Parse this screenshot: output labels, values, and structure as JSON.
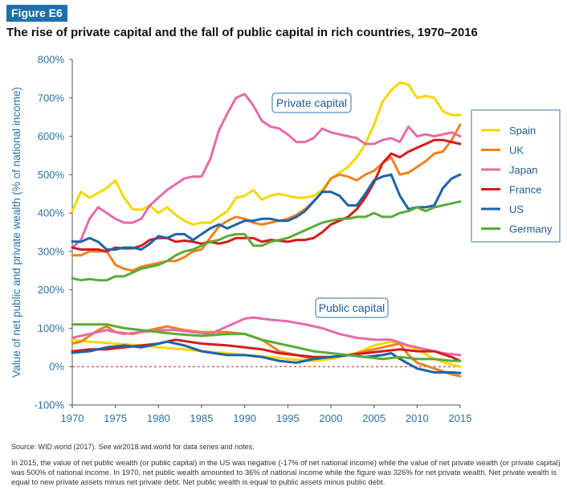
{
  "figure_label": "Figure E6",
  "title": "The rise of private capital and the fall of public capital in rich countries, 1970–2016",
  "source": "Source: WID.world (2017). See wir2018.wid.world for data series and notes.",
  "note": "In 2015, the value of net public wealth (or public capital) in the US was negative (-17% of net national income) while the value of net private wealth (or private capital) was 500% of national income. In 1970, net public wealth amounted to 36% of national income while the figure was 326% for net private wealth. Net private wealth is equal to new private assets minus net private debt. Net public wealth is equal to public assets minus public debt.",
  "colors": {
    "Spain": "#f5d800",
    "UK": "#ee8220",
    "Japan": "#e56ca6",
    "France": "#d41c1c",
    "US": "#1d64a8",
    "Germany": "#5aab38",
    "axis_text": "#2a72a8",
    "zero_line": "#d41c1c"
  },
  "chart_data": {
    "type": "line",
    "ylabel": "Value of net public and private wealth (% of national income)",
    "xlim": [
      1970,
      2015
    ],
    "ylim": [
      -100,
      800
    ],
    "xticks": [
      1970,
      1975,
      1980,
      1985,
      1990,
      1995,
      2000,
      2005,
      2010,
      2015
    ],
    "yticks": [
      -100,
      0,
      100,
      200,
      300,
      400,
      500,
      600,
      700,
      800
    ],
    "ytick_suffix": "%",
    "grid": false,
    "legend_position": "right",
    "annotations": [
      "Private capital",
      "Public capital"
    ],
    "legend": [
      "Spain",
      "UK",
      "Japan",
      "France",
      "US",
      "Germany"
    ],
    "private_capital": [
      {
        "name": "Spain",
        "x": [
          1970,
          1971,
          1972,
          1974,
          1975,
          1976,
          1977,
          1978,
          1979,
          1980,
          1981,
          1982,
          1983,
          1984,
          1985,
          1986,
          1988,
          1989,
          1990,
          1991,
          1992,
          1993,
          1994,
          1995,
          1996,
          1997,
          1998,
          1999,
          2000,
          2001,
          2002,
          2003,
          2004,
          2005,
          2006,
          2007,
          2008,
          2009,
          2010,
          2011,
          2012,
          2013,
          2014,
          2015
        ],
        "y": [
          405,
          455,
          440,
          465,
          485,
          440,
          410,
          408,
          420,
          400,
          415,
          395,
          380,
          370,
          375,
          375,
          405,
          440,
          445,
          460,
          435,
          445,
          450,
          445,
          440,
          440,
          445,
          460,
          490,
          505,
          520,
          545,
          580,
          630,
          690,
          720,
          740,
          735,
          700,
          705,
          700,
          665,
          655,
          655
        ]
      },
      {
        "name": "UK",
        "x": [
          1970,
          1971,
          1972,
          1973,
          1974,
          1975,
          1976,
          1977,
          1978,
          1979,
          1980,
          1981,
          1982,
          1983,
          1984,
          1985,
          1986,
          1987,
          1988,
          1989,
          1990,
          1991,
          1992,
          1993,
          1994,
          1995,
          1996,
          1997,
          1998,
          1999,
          2000,
          2001,
          2002,
          2003,
          2004,
          2005,
          2006,
          2007,
          2008,
          2009,
          2010,
          2011,
          2012,
          2013,
          2014,
          2015
        ],
        "y": [
          290,
          290,
          300,
          300,
          300,
          265,
          255,
          250,
          260,
          265,
          270,
          275,
          275,
          285,
          300,
          305,
          335,
          365,
          380,
          390,
          385,
          375,
          370,
          375,
          380,
          385,
          395,
          410,
          430,
          455,
          490,
          500,
          495,
          485,
          500,
          510,
          530,
          545,
          500,
          505,
          520,
          535,
          555,
          560,
          590,
          630
        ]
      },
      {
        "name": "Japan",
        "x": [
          1970,
          1971,
          1972,
          1973,
          1974,
          1975,
          1976,
          1977,
          1978,
          1979,
          1980,
          1981,
          1982,
          1983,
          1984,
          1985,
          1986,
          1987,
          1988,
          1989,
          1990,
          1991,
          1992,
          1993,
          1994,
          1995,
          1996,
          1997,
          1998,
          1999,
          2000,
          2001,
          2002,
          2003,
          2004,
          2005,
          2006,
          2007,
          2008,
          2009,
          2010,
          2011,
          2012,
          2013,
          2014,
          2015
        ],
        "y": [
          310,
          330,
          385,
          415,
          400,
          385,
          375,
          375,
          385,
          420,
          440,
          460,
          475,
          490,
          495,
          495,
          540,
          615,
          660,
          700,
          710,
          680,
          640,
          625,
          620,
          605,
          585,
          585,
          595,
          620,
          610,
          605,
          600,
          595,
          580,
          580,
          590,
          595,
          585,
          625,
          600,
          605,
          600,
          605,
          610,
          600
        ]
      },
      {
        "name": "France",
        "x": [
          1970,
          1971,
          1972,
          1973,
          1974,
          1975,
          1976,
          1977,
          1978,
          1979,
          1980,
          1981,
          1982,
          1983,
          1984,
          1985,
          1986,
          1987,
          1988,
          1989,
          1990,
          1991,
          1992,
          1993,
          1994,
          1995,
          1996,
          1997,
          1998,
          1999,
          2000,
          2001,
          2002,
          2003,
          2004,
          2005,
          2006,
          2007,
          2008,
          2009,
          2010,
          2011,
          2012,
          2013,
          2014,
          2015
        ],
        "y": [
          310,
          305,
          305,
          305,
          300,
          310,
          308,
          308,
          315,
          330,
          335,
          335,
          325,
          328,
          325,
          320,
          325,
          320,
          325,
          335,
          335,
          335,
          325,
          330,
          328,
          325,
          330,
          330,
          335,
          350,
          370,
          380,
          390,
          410,
          440,
          480,
          530,
          555,
          545,
          560,
          570,
          580,
          590,
          590,
          585,
          580
        ]
      },
      {
        "name": "US",
        "x": [
          1970,
          1971,
          1972,
          1973,
          1974,
          1975,
          1976,
          1977,
          1978,
          1979,
          1980,
          1981,
          1982,
          1983,
          1984,
          1985,
          1986,
          1987,
          1988,
          1989,
          1990,
          1991,
          1992,
          1993,
          1994,
          1995,
          1996,
          1997,
          1998,
          1999,
          2000,
          2001,
          2002,
          2003,
          2004,
          2005,
          2006,
          2007,
          2008,
          2009,
          2010,
          2011,
          2012,
          2013,
          2014,
          2015
        ],
        "y": [
          326,
          325,
          335,
          325,
          305,
          305,
          310,
          310,
          305,
          320,
          340,
          335,
          345,
          345,
          330,
          345,
          360,
          370,
          360,
          370,
          380,
          380,
          385,
          385,
          380,
          380,
          390,
          405,
          430,
          455,
          455,
          445,
          420,
          420,
          450,
          485,
          495,
          500,
          445,
          410,
          415,
          415,
          420,
          465,
          490,
          500
        ]
      },
      {
        "name": "Germany",
        "x": [
          1970,
          1971,
          1972,
          1973,
          1974,
          1975,
          1976,
          1977,
          1978,
          1979,
          1980,
          1981,
          1982,
          1983,
          1984,
          1985,
          1986,
          1987,
          1988,
          1989,
          1990,
          1991,
          1992,
          1993,
          1994,
          1995,
          1996,
          1997,
          1998,
          1999,
          2000,
          2001,
          2002,
          2003,
          2004,
          2005,
          2006,
          2007,
          2008,
          2009,
          2010,
          2011,
          2012,
          2013,
          2014,
          2015
        ],
        "y": [
          230,
          225,
          228,
          225,
          225,
          235,
          235,
          245,
          255,
          260,
          265,
          275,
          290,
          300,
          305,
          315,
          325,
          330,
          340,
          345,
          345,
          315,
          315,
          325,
          330,
          335,
          345,
          355,
          365,
          375,
          380,
          385,
          385,
          390,
          390,
          400,
          390,
          390,
          400,
          405,
          415,
          405,
          415,
          420,
          425,
          430
        ]
      }
    ],
    "public_capital": [
      {
        "name": "Spain",
        "x": [
          1970,
          1972,
          1975,
          1978,
          1980,
          1983,
          1985,
          1988,
          1990,
          1993,
          1995,
          1998,
          2000,
          2003,
          2005,
          2007,
          2008,
          2010,
          2012,
          2014,
          2015
        ],
        "y": [
          70,
          65,
          60,
          55,
          50,
          45,
          40,
          35,
          30,
          25,
          20,
          15,
          20,
          35,
          55,
          65,
          60,
          45,
          20,
          5,
          0
        ]
      },
      {
        "name": "UK",
        "x": [
          1970,
          1971,
          1972,
          1973,
          1974,
          1975,
          1977,
          1980,
          1981,
          1983,
          1985,
          1988,
          1990,
          1992,
          1994,
          1996,
          1998,
          2000,
          2002,
          2004,
          2006,
          2007,
          2008,
          2009,
          2010,
          2012,
          2014,
          2015
        ],
        "y": [
          60,
          65,
          80,
          95,
          105,
          90,
          85,
          100,
          105,
          95,
          90,
          90,
          85,
          70,
          40,
          30,
          20,
          25,
          30,
          40,
          50,
          55,
          60,
          30,
          10,
          -5,
          -20,
          -25
        ]
      },
      {
        "name": "Japan",
        "x": [
          1970,
          1972,
          1974,
          1976,
          1978,
          1980,
          1982,
          1984,
          1986,
          1988,
          1990,
          1991,
          1993,
          1995,
          1997,
          1999,
          2001,
          2003,
          2005,
          2007,
          2009,
          2011,
          2013,
          2015
        ],
        "y": [
          75,
          85,
          95,
          85,
          90,
          95,
          95,
          90,
          85,
          105,
          125,
          128,
          122,
          118,
          110,
          100,
          85,
          75,
          70,
          70,
          55,
          45,
          35,
          30
        ]
      },
      {
        "name": "France",
        "x": [
          1970,
          1972,
          1974,
          1976,
          1978,
          1980,
          1982,
          1985,
          1988,
          1990,
          1992,
          1994,
          1996,
          1998,
          2000,
          2002,
          2004,
          2006,
          2008,
          2010,
          2012,
          2014,
          2015
        ],
        "y": [
          40,
          45,
          45,
          50,
          55,
          60,
          70,
          60,
          55,
          50,
          45,
          35,
          30,
          25,
          25,
          30,
          35,
          40,
          45,
          40,
          40,
          25,
          15
        ]
      },
      {
        "name": "US",
        "x": [
          1970,
          1972,
          1974,
          1976,
          1978,
          1980,
          1981,
          1983,
          1985,
          1988,
          1990,
          1992,
          1994,
          1996,
          1998,
          2000,
          2002,
          2004,
          2006,
          2007,
          2008,
          2010,
          2012,
          2014,
          2015
        ],
        "y": [
          36,
          40,
          50,
          55,
          50,
          60,
          65,
          55,
          40,
          30,
          30,
          25,
          15,
          10,
          20,
          25,
          30,
          25,
          30,
          35,
          20,
          -5,
          -15,
          -15,
          -17
        ]
      },
      {
        "name": "Germany",
        "x": [
          1970,
          1972,
          1974,
          1976,
          1978,
          1980,
          1982,
          1985,
          1988,
          1990,
          1992,
          1994,
          1996,
          1998,
          2000,
          2002,
          2004,
          2006,
          2008,
          2010,
          2012,
          2014,
          2015
        ],
        "y": [
          110,
          110,
          110,
          100,
          95,
          90,
          85,
          80,
          85,
          85,
          70,
          60,
          50,
          40,
          35,
          30,
          25,
          20,
          25,
          20,
          20,
          15,
          15
        ]
      }
    ]
  }
}
